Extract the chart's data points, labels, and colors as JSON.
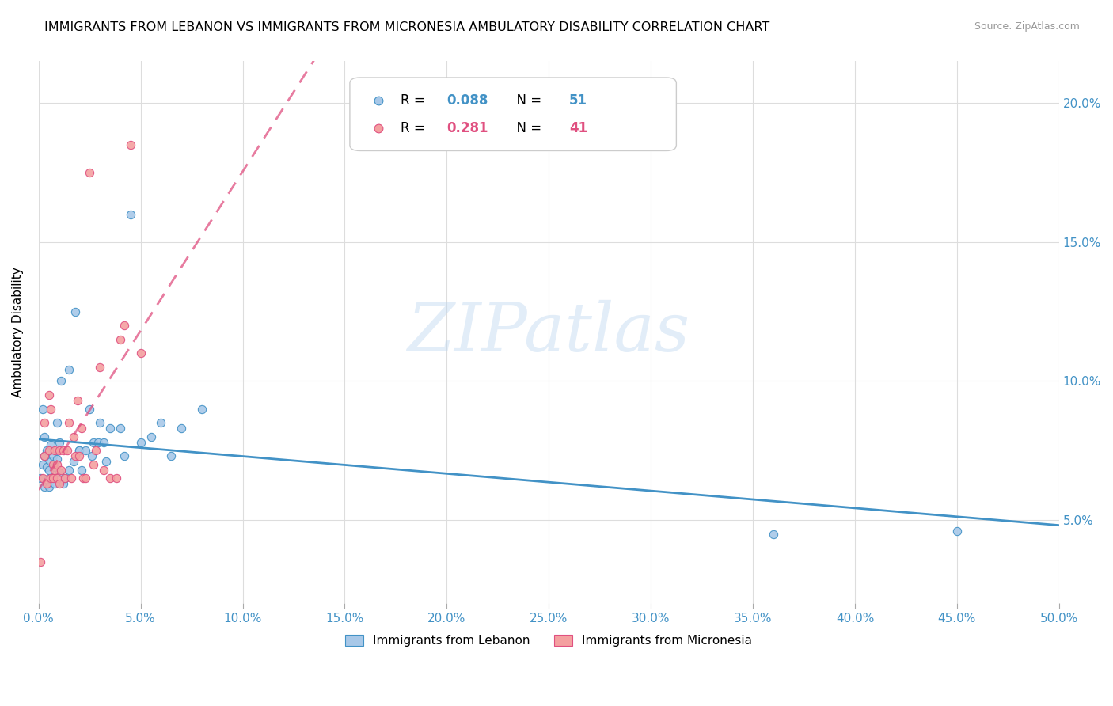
{
  "title": "IMMIGRANTS FROM LEBANON VS IMMIGRANTS FROM MICRONESIA AMBULATORY DISABILITY CORRELATION CHART",
  "source": "Source: ZipAtlas.com",
  "ylabel": "Ambulatory Disability",
  "ytick_vals": [
    0.05,
    0.1,
    0.15,
    0.2
  ],
  "ytick_labels": [
    "5.0%",
    "10.0%",
    "15.0%",
    "20.0%"
  ],
  "legend1_r": "0.088",
  "legend1_n": "51",
  "legend2_r": "0.281",
  "legend2_n": "41",
  "color_lebanon": "#a8c8e8",
  "color_micronesia": "#f4a0a0",
  "color_lebanon_line": "#4292c6",
  "color_micronesia_line": "#e05080",
  "lebanon_x": [
    0.001,
    0.002,
    0.002,
    0.003,
    0.003,
    0.003,
    0.004,
    0.004,
    0.005,
    0.005,
    0.005,
    0.006,
    0.006,
    0.007,
    0.007,
    0.008,
    0.008,
    0.009,
    0.009,
    0.01,
    0.01,
    0.011,
    0.012,
    0.013,
    0.015,
    0.015,
    0.017,
    0.018,
    0.02,
    0.02,
    0.021,
    0.023,
    0.025,
    0.026,
    0.027,
    0.029,
    0.03,
    0.032,
    0.033,
    0.035,
    0.04,
    0.042,
    0.045,
    0.05,
    0.055,
    0.06,
    0.065,
    0.07,
    0.08,
    0.36,
    0.45
  ],
  "lebanon_y": [
    0.065,
    0.07,
    0.09,
    0.062,
    0.073,
    0.08,
    0.069,
    0.075,
    0.062,
    0.065,
    0.068,
    0.071,
    0.077,
    0.065,
    0.073,
    0.063,
    0.069,
    0.072,
    0.085,
    0.067,
    0.078,
    0.1,
    0.063,
    0.065,
    0.068,
    0.104,
    0.071,
    0.125,
    0.075,
    0.075,
    0.068,
    0.075,
    0.09,
    0.073,
    0.078,
    0.078,
    0.085,
    0.078,
    0.071,
    0.083,
    0.083,
    0.073,
    0.16,
    0.078,
    0.08,
    0.085,
    0.073,
    0.083,
    0.09,
    0.045,
    0.046
  ],
  "micronesia_x": [
    0.001,
    0.002,
    0.003,
    0.003,
    0.004,
    0.005,
    0.005,
    0.006,
    0.006,
    0.007,
    0.007,
    0.008,
    0.008,
    0.009,
    0.009,
    0.01,
    0.01,
    0.011,
    0.012,
    0.013,
    0.014,
    0.015,
    0.016,
    0.017,
    0.018,
    0.019,
    0.02,
    0.021,
    0.022,
    0.023,
    0.025,
    0.027,
    0.028,
    0.03,
    0.032,
    0.035,
    0.038,
    0.04,
    0.042,
    0.045,
    0.05
  ],
  "micronesia_y": [
    0.035,
    0.065,
    0.073,
    0.085,
    0.063,
    0.075,
    0.095,
    0.065,
    0.09,
    0.065,
    0.07,
    0.068,
    0.075,
    0.065,
    0.07,
    0.063,
    0.075,
    0.068,
    0.075,
    0.065,
    0.075,
    0.085,
    0.065,
    0.08,
    0.073,
    0.093,
    0.073,
    0.083,
    0.065,
    0.065,
    0.175,
    0.07,
    0.075,
    0.105,
    0.068,
    0.065,
    0.065,
    0.115,
    0.12,
    0.185,
    0.11
  ],
  "watermark": "ZIPatlas",
  "background_color": "#ffffff",
  "grid_color": "#dddddd"
}
